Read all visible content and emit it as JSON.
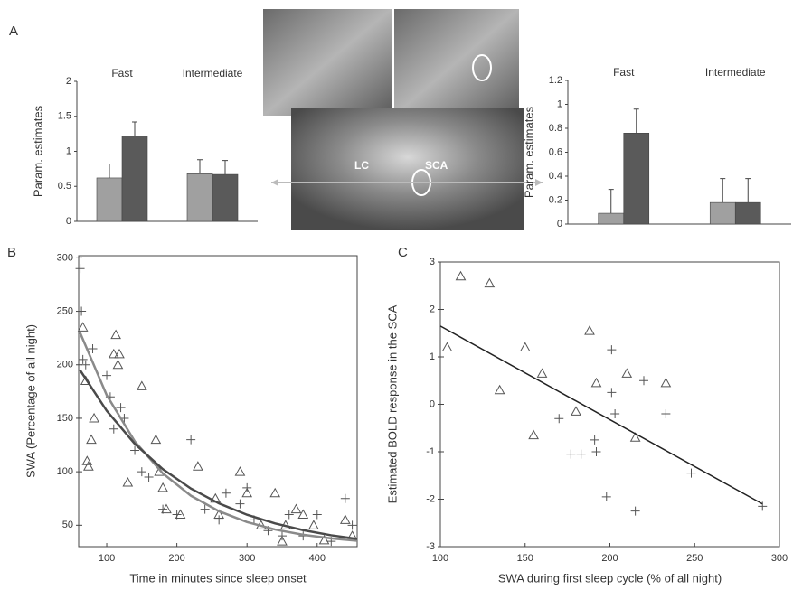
{
  "chart_data": [
    {
      "type": "bar",
      "panel_label": "A",
      "ylabel": "Param. estimates",
      "categories": [
        "Fast",
        "Intermediate"
      ],
      "series": [
        {
          "color": "#a0a0a0",
          "values": [
            0.62,
            0.68
          ],
          "errors": [
            0.2,
            0.2
          ]
        },
        {
          "color": "#5a5a5a",
          "values": [
            1.22,
            0.67
          ],
          "errors": [
            0.2,
            0.2
          ]
        }
      ],
      "ylim": [
        0,
        2
      ],
      "yticks": [
        0,
        0.5,
        1,
        1.5,
        2
      ]
    },
    {
      "type": "bar",
      "ylabel": "Param. estimates",
      "categories": [
        "Fast",
        "Intermediate"
      ],
      "series": [
        {
          "color": "#a0a0a0",
          "values": [
            0.09,
            0.18
          ],
          "errors": [
            0.2,
            0.2
          ]
        },
        {
          "color": "#5a5a5a",
          "values": [
            0.76,
            0.18
          ],
          "errors": [
            0.2,
            0.2
          ]
        }
      ],
      "ylim": [
        0,
        1.2
      ],
      "yticks": [
        0,
        0.2,
        0.4,
        0.6,
        0.8,
        1,
        1.2
      ]
    },
    {
      "type": "scatter",
      "panel_label": "B",
      "xlabel": "Time in minutes since sleep onset",
      "ylabel": "SWA (Percentage of all night)",
      "xlim": [
        60,
        457
      ],
      "ylim": [
        30,
        302
      ],
      "xticks": [
        100,
        200,
        300,
        400
      ],
      "yticks": [
        50,
        100,
        150,
        200,
        250,
        300
      ],
      "series": [
        {
          "marker": "triangle",
          "color": "#555555",
          "x": [
            66,
            70,
            72,
            74,
            78,
            82,
            110,
            113,
            116,
            118,
            130,
            150,
            170,
            175,
            180,
            185,
            205,
            230,
            255,
            260,
            290,
            300,
            320,
            340,
            350,
            355,
            370,
            380,
            395,
            410,
            440,
            450
          ],
          "values": [
            235,
            185,
            110,
            105,
            130,
            150,
            210,
            228,
            200,
            210,
            90,
            180,
            130,
            100,
            85,
            65,
            60,
            105,
            75,
            60,
            100,
            80,
            50,
            80,
            35,
            50,
            65,
            60,
            50,
            36,
            55,
            40
          ]
        },
        {
          "marker": "plus",
          "color": "#555555",
          "x": [
            62,
            64,
            66,
            70,
            80,
            100,
            105,
            110,
            120,
            125,
            140,
            150,
            160,
            180,
            200,
            220,
            240,
            260,
            270,
            290,
            300,
            310,
            330,
            350,
            360,
            380,
            400,
            420,
            440,
            450
          ],
          "values": [
            290,
            250,
            205,
            200,
            215,
            190,
            170,
            140,
            160,
            150,
            120,
            100,
            95,
            65,
            60,
            130,
            65,
            55,
            80,
            70,
            85,
            55,
            45,
            40,
            60,
            40,
            60,
            35,
            75,
            50
          ]
        },
        {
          "marker": "line",
          "color": "#8a8a8a",
          "x": [
            62,
            100,
            140,
            180,
            220,
            260,
            300,
            340,
            380,
            420,
            457
          ],
          "values": [
            230,
            171.6,
            128.4,
            98.4,
            77.6,
            63.1,
            53.0,
            46.0,
            41.1,
            37.7,
            35.5
          ]
        },
        {
          "marker": "line",
          "color": "#4a4a4a",
          "x": [
            62,
            100,
            140,
            180,
            220,
            260,
            300,
            340,
            380,
            420,
            457
          ],
          "values": [
            195,
            157.0,
            126.1,
            102.4,
            84.3,
            70.4,
            59.8,
            51.7,
            45.4,
            40.6,
            37.2
          ]
        }
      ]
    },
    {
      "type": "scatter",
      "panel_label": "C",
      "xlabel": "SWA during first sleep cycle (% of all night)",
      "ylabel": "Estimated BOLD response in the SCA",
      "xlim": [
        100,
        300
      ],
      "ylim": [
        -3,
        3
      ],
      "xticks": [
        100,
        150,
        200,
        250,
        300
      ],
      "yticks": [
        -3,
        -2,
        -1,
        0,
        1,
        2,
        3
      ],
      "series": [
        {
          "marker": "triangle",
          "color": "#555555",
          "x": [
            104,
            112,
            129,
            135,
            150,
            155,
            160,
            180,
            188,
            192,
            210,
            215,
            233
          ],
          "values": [
            1.2,
            2.7,
            2.55,
            0.3,
            1.2,
            -0.65,
            0.65,
            -0.15,
            1.55,
            0.45,
            0.65,
            -0.7,
            0.45
          ]
        },
        {
          "marker": "plus",
          "color": "#555555",
          "x": [
            170,
            177,
            183,
            191,
            192,
            198,
            201,
            201,
            203,
            215,
            220,
            233,
            248,
            290
          ],
          "values": [
            -0.3,
            -1.05,
            -1.05,
            -0.75,
            -1.0,
            -1.95,
            1.15,
            0.25,
            -0.2,
            -2.25,
            0.5,
            -0.2,
            -1.45,
            -2.15
          ]
        },
        {
          "marker": "line",
          "color": "#222222",
          "x": [
            100,
            290
          ],
          "values": [
            1.65,
            -2.1
          ]
        }
      ]
    }
  ],
  "brain_image": {
    "labels": [
      "LC",
      "SCA"
    ]
  }
}
